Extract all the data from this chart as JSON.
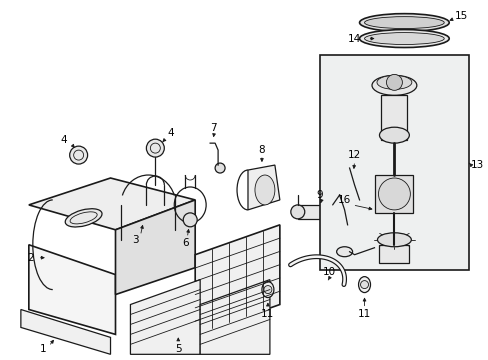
{
  "background_color": "#ffffff",
  "line_color": "#1a1a1a",
  "label_color": "#000000",
  "box_fill": "#eef0f0",
  "fig_width": 4.89,
  "fig_height": 3.6,
  "dpi": 100
}
